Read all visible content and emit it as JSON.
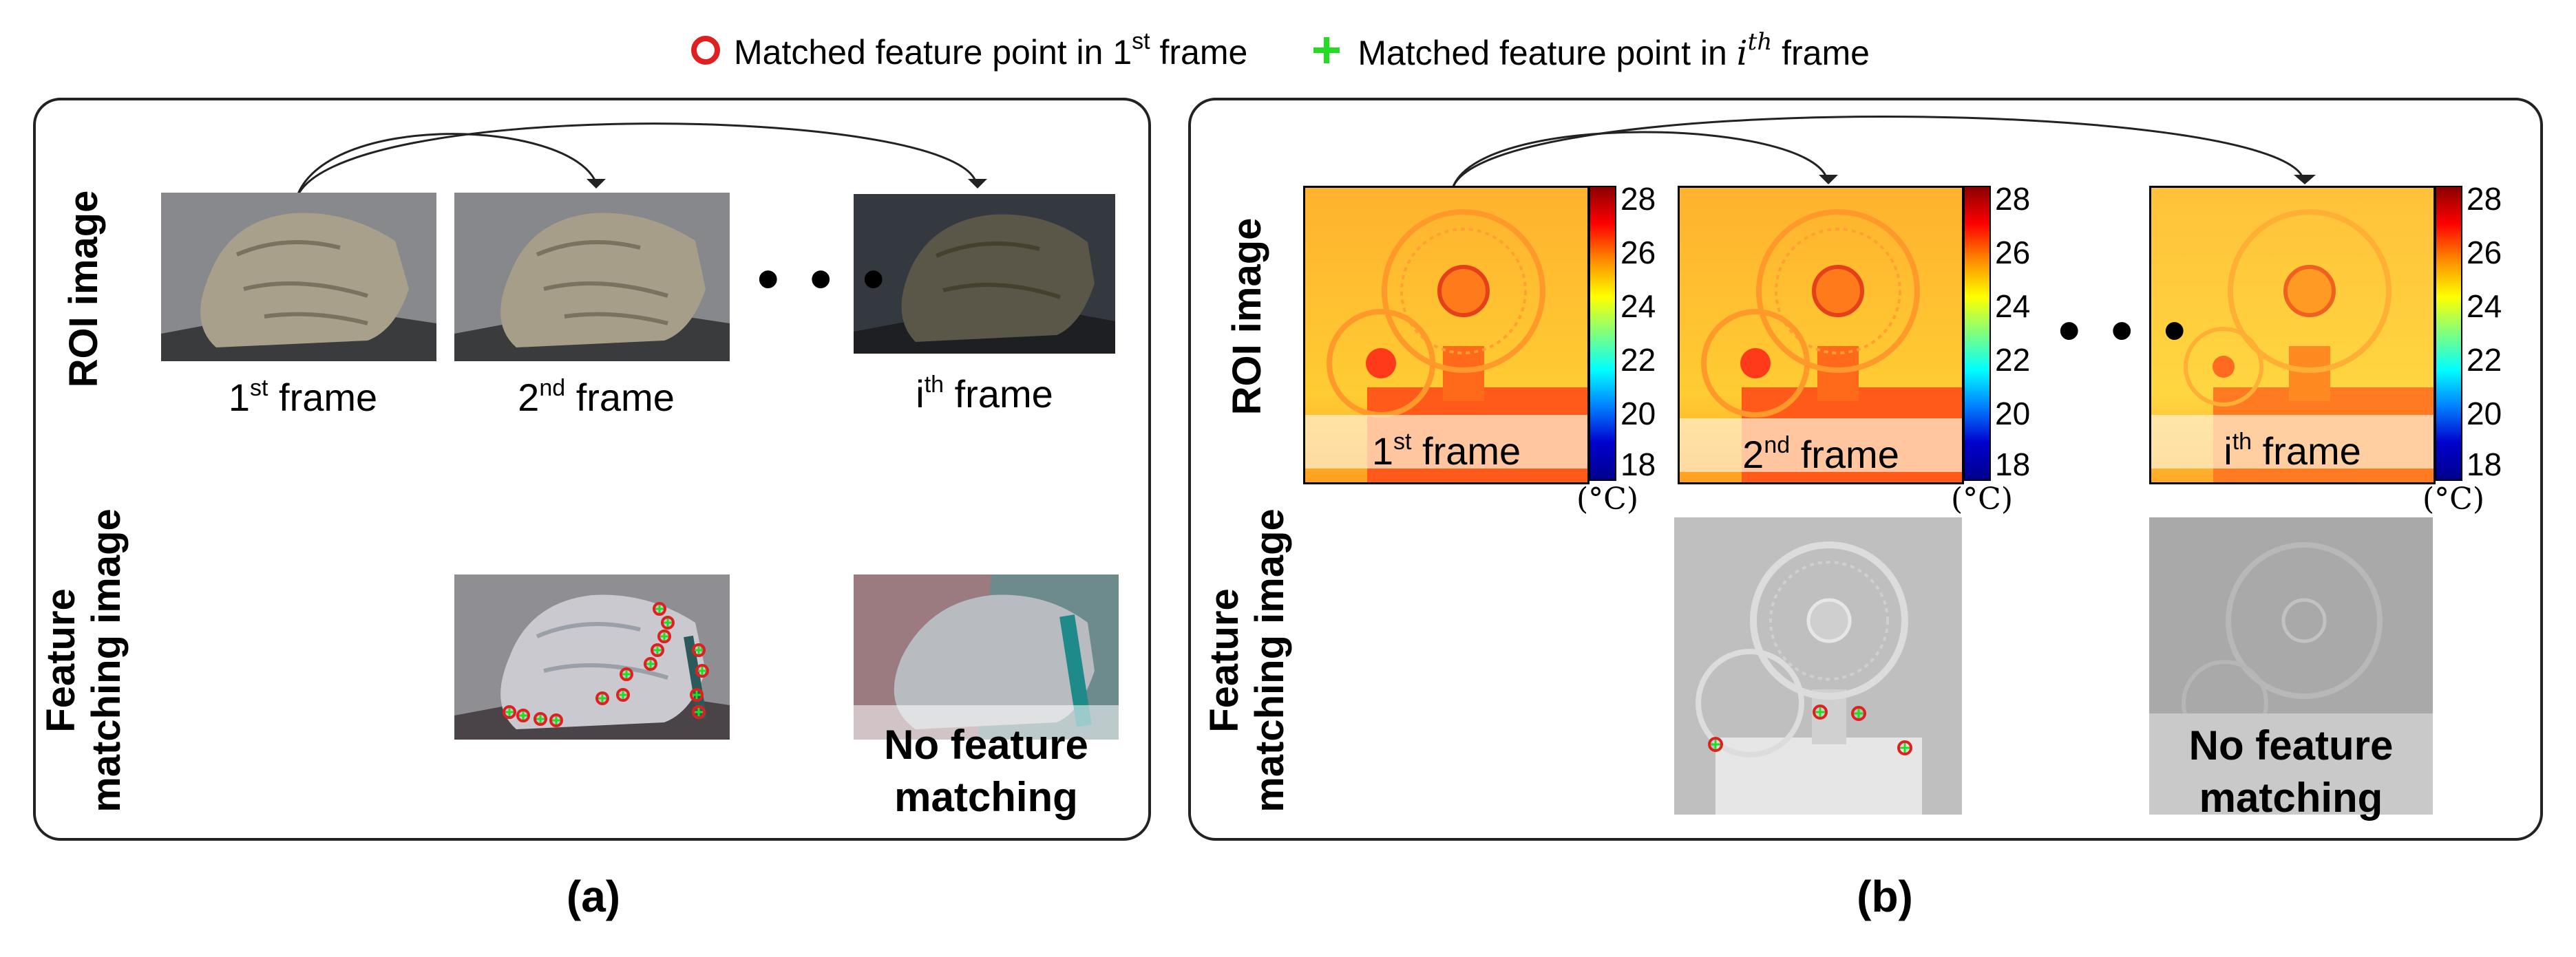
{
  "legend": {
    "item1_prefix": "Matched feature point in 1",
    "item1_sup": "st",
    "item1_suffix": " frame",
    "item2_prefix": "Matched feature point in ",
    "item2_math_base": "i",
    "item2_math_sup": "th",
    "item2_suffix": " frame",
    "colors": {
      "circle": "#e02020",
      "plus": "#22dd22"
    }
  },
  "panel_a": {
    "row_labels": {
      "roi": "ROI image",
      "feature_line1": "Feature",
      "feature_line2": "matching image"
    },
    "frames": [
      {
        "num": "1",
        "sup": "st",
        "suffix": " frame"
      },
      {
        "num": "2",
        "sup": "nd",
        "suffix": " frame"
      },
      {
        "num": "i",
        "sup": "th",
        "suffix": " frame"
      }
    ],
    "ellipsis": "• • •",
    "no_feature_line1": "No feature",
    "no_feature_line2": "matching",
    "caption": "(a)"
  },
  "panel_b": {
    "row_labels": {
      "roi": "ROI image",
      "feature_line1": "Feature",
      "feature_line2": "matching image"
    },
    "frames": [
      {
        "num": "1",
        "sup": "st",
        "suffix": " frame"
      },
      {
        "num": "2",
        "sup": "nd",
        "suffix": " frame"
      },
      {
        "num": "i",
        "sup": "th",
        "suffix": " frame"
      }
    ],
    "colorbar_ticks": [
      "28",
      "26",
      "24",
      "22",
      "20",
      "18"
    ],
    "unit": "(°C)",
    "ellipsis": "• • •",
    "no_feature_line1": "No feature",
    "no_feature_line2": "matching",
    "caption": "(b)"
  }
}
